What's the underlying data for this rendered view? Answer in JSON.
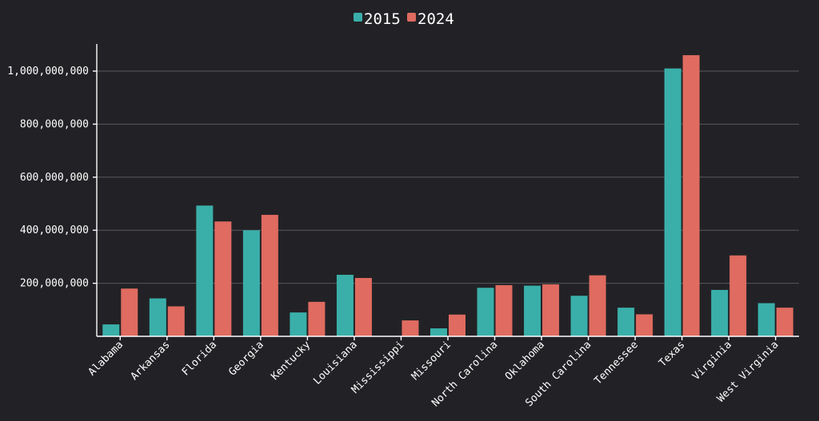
{
  "chart_data": {
    "type": "bar",
    "title": "",
    "xlabel": "",
    "ylabel": "",
    "categories": [
      "Alabama",
      "Arkansas",
      "Florida",
      "Georgia",
      "Kentucky",
      "Louisiana",
      "Mississippi",
      "Missouri",
      "North Carolina",
      "Oklahoma",
      "South Carolina",
      "Tennessee",
      "Texas",
      "Virginia",
      "West Virginia"
    ],
    "series": [
      {
        "name": "2015",
        "color": "#3aafa9",
        "values": [
          45000000,
          143000000,
          493000000,
          400000000,
          90000000,
          232000000,
          0,
          30000000,
          183000000,
          191000000,
          153000000,
          108000000,
          1010000000,
          175000000,
          125000000
        ]
      },
      {
        "name": "2024",
        "color": "#e06b60",
        "values": [
          180000000,
          113000000,
          433000000,
          458000000,
          130000000,
          220000000,
          60000000,
          82000000,
          193000000,
          196000000,
          230000000,
          83000000,
          1060000000,
          305000000,
          108000000
        ]
      }
    ],
    "ylim": [
      0,
      1100000000
    ],
    "yticks": [
      200000000,
      400000000,
      600000000,
      800000000,
      1000000000
    ],
    "ytick_labels": [
      "200,000,000",
      "400,000,000",
      "600,000,000",
      "800,000,000",
      "1,000,000,000"
    ],
    "grid": true,
    "legend_position": "top-center"
  }
}
